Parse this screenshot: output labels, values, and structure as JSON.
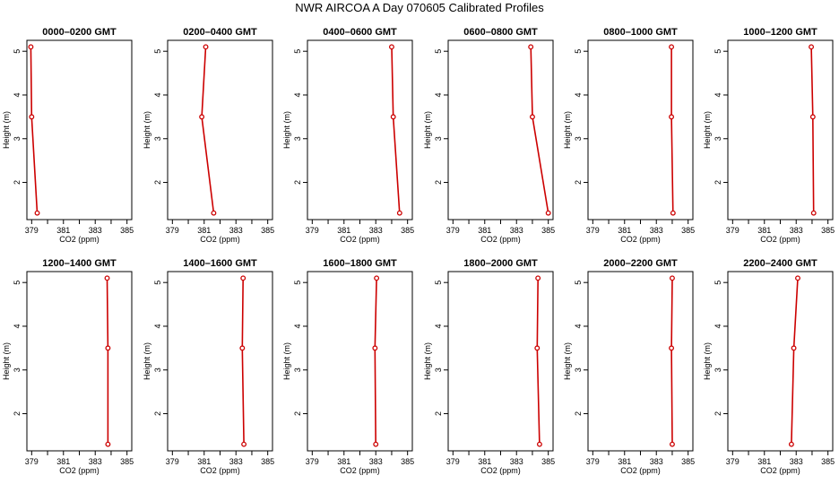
{
  "title": "NWR AIRCOA A  Day 070605  Calibrated Profiles",
  "chart_data": {
    "type": "line",
    "xlabel": "CO2 (ppm)",
    "ylabel": "Height (m)",
    "xlim": [
      378.7,
      385.3
    ],
    "ylim": [
      1.15,
      5.25
    ],
    "xticks": [
      379,
      381,
      383,
      385
    ],
    "yticks": [
      2,
      3,
      4,
      5
    ],
    "marker": "open-circle",
    "color": "#cc0000",
    "panels": [
      {
        "title": "0000–0200 GMT",
        "points": [
          {
            "x": 378.95,
            "y": 5.1
          },
          {
            "x": 379.0,
            "y": 3.5
          },
          {
            "x": 379.35,
            "y": 1.3
          }
        ]
      },
      {
        "title": "0200–0400 GMT",
        "points": [
          {
            "x": 381.1,
            "y": 5.1
          },
          {
            "x": 380.85,
            "y": 3.5
          },
          {
            "x": 381.6,
            "y": 1.3
          }
        ]
      },
      {
        "title": "0400–0600 GMT",
        "points": [
          {
            "x": 384.0,
            "y": 5.1
          },
          {
            "x": 384.1,
            "y": 3.5
          },
          {
            "x": 384.5,
            "y": 1.3
          }
        ]
      },
      {
        "title": "0600–0800 GMT",
        "points": [
          {
            "x": 383.9,
            "y": 5.1
          },
          {
            "x": 384.0,
            "y": 3.5
          },
          {
            "x": 385.0,
            "y": 1.3
          }
        ]
      },
      {
        "title": "0800–1000 GMT",
        "points": [
          {
            "x": 383.95,
            "y": 5.1
          },
          {
            "x": 383.95,
            "y": 3.5
          },
          {
            "x": 384.05,
            "y": 1.3
          }
        ]
      },
      {
        "title": "1000–1200 GMT",
        "points": [
          {
            "x": 383.95,
            "y": 5.1
          },
          {
            "x": 384.05,
            "y": 3.5
          },
          {
            "x": 384.1,
            "y": 1.3
          }
        ]
      },
      {
        "title": "1200–1400 GMT",
        "points": [
          {
            "x": 383.75,
            "y": 5.1
          },
          {
            "x": 383.8,
            "y": 3.5
          },
          {
            "x": 383.8,
            "y": 1.3
          }
        ]
      },
      {
        "title": "1400–1600 GMT",
        "points": [
          {
            "x": 383.45,
            "y": 5.1
          },
          {
            "x": 383.4,
            "y": 3.5
          },
          {
            "x": 383.5,
            "y": 1.3
          }
        ]
      },
      {
        "title": "1600–1800 GMT",
        "points": [
          {
            "x": 383.05,
            "y": 5.1
          },
          {
            "x": 382.95,
            "y": 3.5
          },
          {
            "x": 383.0,
            "y": 1.3
          }
        ]
      },
      {
        "title": "1800–2000 GMT",
        "points": [
          {
            "x": 384.35,
            "y": 5.1
          },
          {
            "x": 384.3,
            "y": 3.5
          },
          {
            "x": 384.45,
            "y": 1.3
          }
        ]
      },
      {
        "title": "2000–2200 GMT",
        "points": [
          {
            "x": 384.0,
            "y": 5.1
          },
          {
            "x": 383.95,
            "y": 3.5
          },
          {
            "x": 384.0,
            "y": 1.3
          }
        ]
      },
      {
        "title": "2200–2400 GMT",
        "points": [
          {
            "x": 383.1,
            "y": 5.1
          },
          {
            "x": 382.85,
            "y": 3.5
          },
          {
            "x": 382.7,
            "y": 1.3
          }
        ]
      }
    ]
  }
}
